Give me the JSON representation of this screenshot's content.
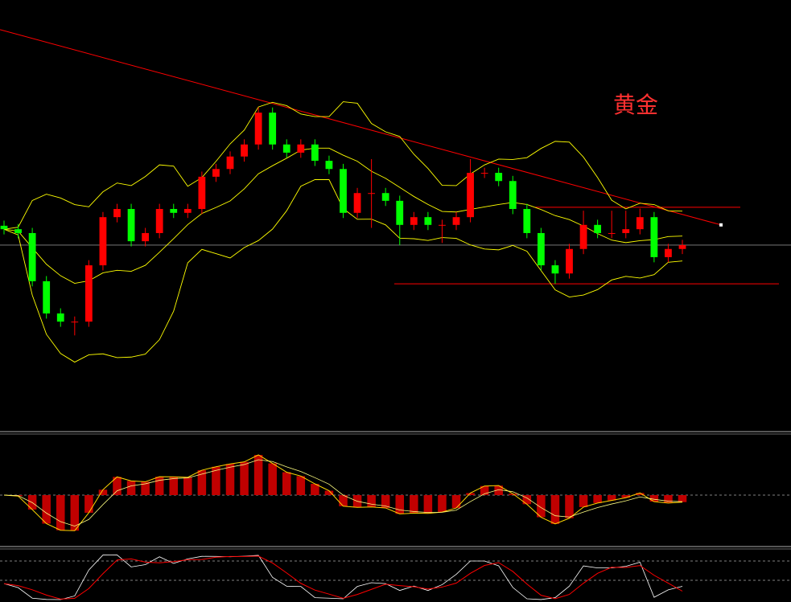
{
  "chart_data": {
    "type": "candlestick",
    "title": "黄金",
    "up_color": "#ff0000",
    "down_color": "#00ff00",
    "band_color": "#ffff00",
    "line_color": "#ff0000",
    "ylim": [
      0,
      100
    ],
    "open": [
      47.5,
      46.7,
      45.8,
      34.6,
      27.1,
      25.2,
      25.2,
      38.3,
      49.5,
      51.4,
      43.9,
      45.8,
      51.4,
      50.5,
      51.4,
      58.9,
      60.7,
      63.6,
      66.4,
      73.8,
      66.4,
      64.5,
      66.4,
      62.6,
      60.7,
      50.5,
      55.1,
      55.1,
      53.3,
      47.7,
      49.5,
      47.7,
      47.7,
      49.5,
      59.8,
      59.8,
      57.9,
      51.4,
      45.8,
      38.3,
      36.4,
      42.1,
      47.7,
      45.8,
      45.8,
      46.7,
      49.5,
      40.2,
      42.1
    ],
    "high": [
      48.7,
      47.9,
      47.0,
      35.8,
      28.3,
      26.4,
      39.5,
      50.7,
      52.6,
      52.6,
      47.0,
      52.6,
      52.6,
      52.6,
      60.1,
      61.9,
      64.8,
      67.6,
      75.0,
      75.0,
      67.6,
      67.6,
      67.6,
      63.8,
      61.9,
      56.3,
      63.0,
      56.3,
      54.5,
      50.7,
      50.7,
      48.9,
      50.7,
      63.0,
      61.0,
      61.0,
      59.1,
      52.6,
      47.0,
      39.5,
      43.3,
      51.0,
      48.9,
      51.0,
      51.0,
      51.5,
      50.7,
      43.3,
      44.2
    ],
    "low": [
      45.5,
      44.6,
      33.4,
      25.9,
      24.0,
      22.0,
      24.0,
      37.1,
      48.3,
      42.7,
      42.7,
      44.6,
      49.3,
      49.3,
      50.2,
      57.7,
      59.5,
      62.4,
      65.2,
      65.2,
      63.3,
      63.3,
      61.4,
      59.5,
      49.3,
      49.3,
      47.0,
      52.1,
      43.0,
      46.5,
      46.5,
      43.5,
      46.5,
      48.3,
      58.6,
      56.7,
      50.2,
      44.6,
      37.1,
      34.0,
      35.2,
      40.9,
      44.6,
      44.6,
      44.6,
      45.5,
      39.0,
      39.0,
      40.9
    ],
    "close": [
      46.7,
      45.8,
      34.6,
      27.1,
      25.2,
      25.2,
      38.3,
      49.5,
      51.4,
      43.9,
      45.8,
      51.4,
      50.5,
      51.4,
      58.9,
      60.7,
      63.6,
      66.4,
      73.8,
      66.4,
      64.5,
      66.4,
      62.6,
      60.7,
      50.5,
      55.1,
      55.1,
      53.3,
      47.7,
      49.5,
      47.7,
      47.7,
      49.5,
      59.8,
      59.8,
      57.9,
      51.4,
      45.8,
      38.3,
      36.4,
      42.1,
      47.7,
      45.8,
      45.8,
      46.7,
      49.5,
      40.2,
      42.1,
      43.0
    ],
    "trendline": [
      93.1,
      47.7
    ],
    "resistance": 51.8,
    "support": 34.0
  }
}
